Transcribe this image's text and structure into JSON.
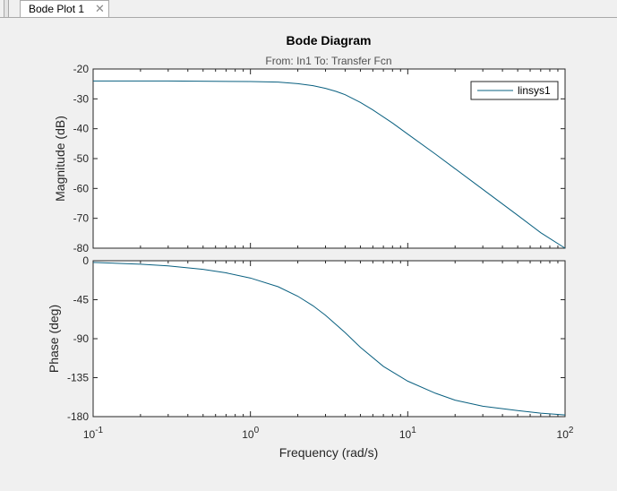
{
  "tab": {
    "label": "Bode Plot 1",
    "close_icon": "close-icon"
  },
  "chart_data": {
    "type": "line",
    "title": "Bode Diagram",
    "subtitle": "From: In1  To: Transfer Fcn",
    "xlabel": "Frequency  (rad/s)",
    "xscale": "log",
    "xlim": [
      0.1,
      100
    ],
    "x_ticks": [
      {
        "base": "10",
        "exp": "-1",
        "value": 0.1
      },
      {
        "base": "10",
        "exp": "0",
        "value": 1
      },
      {
        "base": "10",
        "exp": "1",
        "value": 10
      },
      {
        "base": "10",
        "exp": "2",
        "value": 100
      }
    ],
    "grid": false,
    "legend_position": "top-right",
    "series": [
      {
        "name": "linsys1",
        "color": "#0a6080"
      }
    ],
    "magnitude": {
      "ylabel": "Magnitude (dB)",
      "ylim": [
        -80,
        -20
      ],
      "yticks": [
        "-20",
        "-30",
        "-40",
        "-50",
        "-60",
        "-70",
        "-80"
      ],
      "x": [
        0.1,
        0.3,
        1,
        1.5,
        2,
        2.5,
        3,
        3.5,
        4,
        5,
        6,
        8,
        10,
        15,
        20,
        30,
        50,
        70,
        100
      ],
      "y": [
        -24,
        -24,
        -24.2,
        -24.4,
        -24.9,
        -25.6,
        -26.5,
        -27.5,
        -28.6,
        -31.2,
        -33.7,
        -38.1,
        -41.8,
        -48.5,
        -53.4,
        -60.3,
        -69.0,
        -74.8,
        -80.0
      ]
    },
    "phase": {
      "ylabel": "Phase (deg)",
      "ylim": [
        -180,
        0
      ],
      "yticks": [
        "0",
        "-45",
        "-90",
        "-135",
        "-180"
      ],
      "x": [
        0.1,
        0.2,
        0.3,
        0.5,
        0.7,
        1,
        1.5,
        2,
        2.5,
        3,
        4,
        5,
        7,
        10,
        15,
        20,
        30,
        50,
        70,
        100
      ],
      "y": [
        -2,
        -4,
        -6,
        -10,
        -14,
        -20,
        -30,
        -41,
        -52,
        -63,
        -83,
        -100,
        -122,
        -139,
        -153,
        -161,
        -168,
        -173,
        -176,
        -178
      ]
    }
  }
}
